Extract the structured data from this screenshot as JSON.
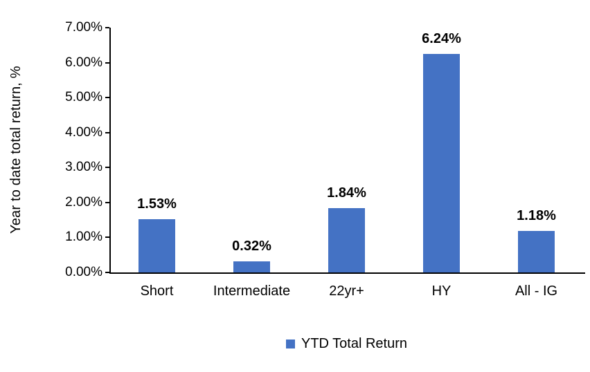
{
  "chart_data": {
    "type": "bar",
    "title": "",
    "categories": [
      "Short",
      "Intermediate",
      "22yr+",
      "HY",
      "All - IG"
    ],
    "values": [
      1.53,
      0.32,
      1.84,
      6.24,
      1.18
    ],
    "value_labels": [
      "1.53%",
      "0.32%",
      "1.84%",
      "6.24%",
      "1.18%"
    ],
    "xlabel": "",
    "ylabel": "Year to date total return, %",
    "ylim": [
      0,
      7
    ],
    "ytick_step": 1,
    "ytick_labels": [
      "0.00%",
      "1.00%",
      "2.00%",
      "3.00%",
      "4.00%",
      "5.00%",
      "6.00%",
      "7.00%"
    ],
    "grid": false,
    "bar_color": "#4472C4",
    "axis_color": "#000000",
    "legend_position": "bottom",
    "legend": [
      {
        "label": "YTD Total Return",
        "color": "#4472C4"
      }
    ]
  }
}
